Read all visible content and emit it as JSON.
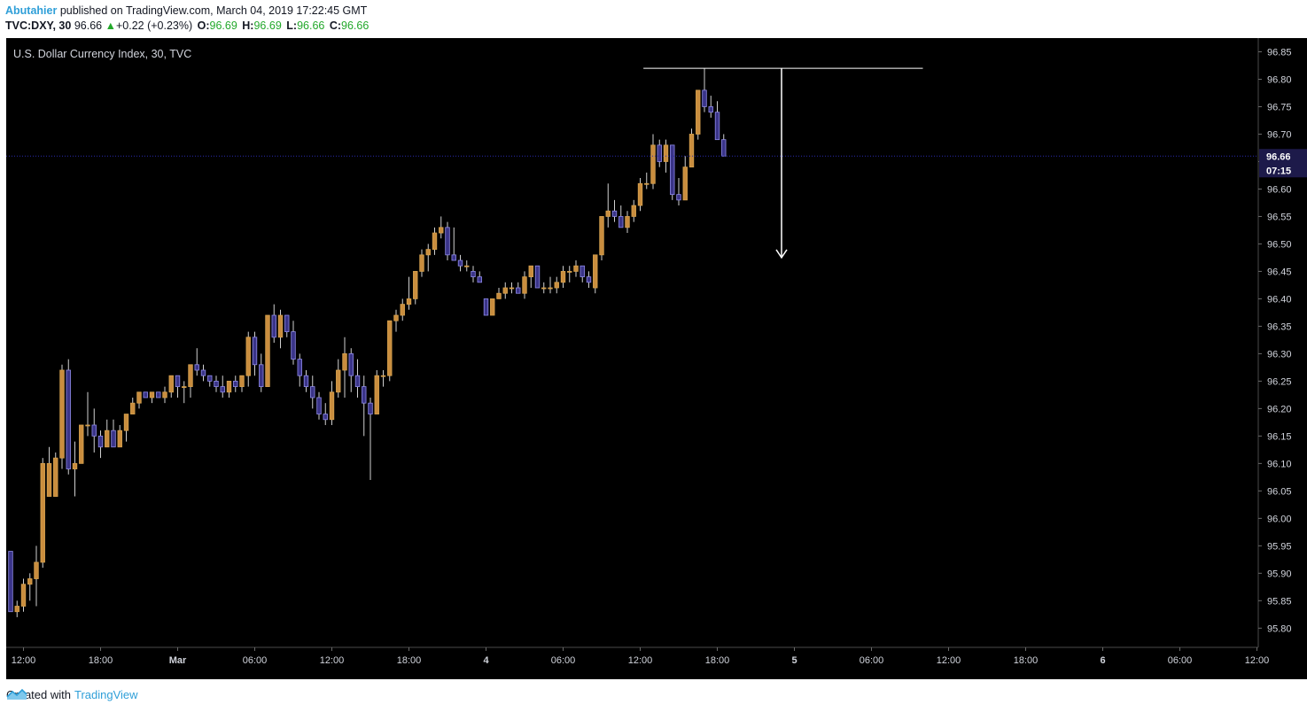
{
  "header": {
    "author": "Abutahier",
    "published_text": " published on TradingView.com, March 04, 2019 17:22:45 GMT",
    "symbol": "TVC:DXY, 30",
    "last": "96.66",
    "change": "+0.22 (+0.23%)",
    "o_label": "O:",
    "o_value": "96.69",
    "h_label": "H:",
    "h_value": "96.69",
    "l_label": "L:",
    "l_value": "96.66",
    "c_label": "C:",
    "c_value": "96.66"
  },
  "chart_data": {
    "type": "candlestick",
    "title": "U.S. Dollar Currency Index, 30, TVC",
    "ylim": [
      95.765,
      96.875
    ],
    "y_ticks": [
      95.8,
      95.85,
      95.9,
      95.95,
      96.0,
      96.05,
      96.1,
      96.15,
      96.2,
      96.25,
      96.3,
      96.35,
      96.4,
      96.45,
      96.5,
      96.55,
      96.6,
      96.65,
      96.7,
      96.75,
      96.8,
      96.85
    ],
    "x_ticks": [
      {
        "label": "12:00",
        "bar": 2
      },
      {
        "label": "18:00",
        "bar": 14
      },
      {
        "label": "Mar",
        "bar": 26
      },
      {
        "label": "06:00",
        "bar": 38
      },
      {
        "label": "12:00",
        "bar": 50
      },
      {
        "label": "18:00",
        "bar": 62
      },
      {
        "label": "4",
        "bar": 74
      },
      {
        "label": "06:00",
        "bar": 86
      },
      {
        "label": "12:00",
        "bar": 98
      },
      {
        "label": "18:00",
        "bar": 110
      },
      {
        "label": "5",
        "bar": 122
      },
      {
        "label": "06:00",
        "bar": 134
      },
      {
        "label": "12:00",
        "bar": 146
      },
      {
        "label": "18:00",
        "bar": 158
      },
      {
        "label": "6",
        "bar": 170
      },
      {
        "label": "06:00",
        "bar": 182
      },
      {
        "label": "12:00",
        "bar": 194
      }
    ],
    "last_price_label": "96.66",
    "countdown_label": "07:15",
    "last_price": 96.66,
    "ohlc": [
      [
        95.94,
        95.94,
        95.83,
        95.83
      ],
      [
        95.83,
        95.85,
        95.82,
        95.84
      ],
      [
        95.84,
        95.89,
        95.83,
        95.88
      ],
      [
        95.88,
        95.9,
        95.85,
        95.89
      ],
      [
        95.89,
        95.95,
        95.84,
        95.92
      ],
      [
        95.92,
        96.11,
        95.91,
        96.1
      ],
      [
        96.04,
        96.13,
        96.04,
        96.1
      ],
      [
        96.04,
        96.12,
        96.04,
        96.11
      ],
      [
        96.11,
        96.28,
        96.09,
        96.27
      ],
      [
        96.27,
        96.29,
        96.08,
        96.09
      ],
      [
        96.09,
        96.14,
        96.04,
        96.1
      ],
      [
        96.1,
        96.17,
        96.1,
        96.17
      ],
      [
        96.17,
        96.23,
        96.15,
        96.17
      ],
      [
        96.17,
        96.2,
        96.12,
        96.15
      ],
      [
        96.15,
        96.16,
        96.11,
        96.13
      ],
      [
        96.13,
        96.18,
        96.13,
        96.16
      ],
      [
        96.16,
        96.18,
        96.13,
        96.13
      ],
      [
        96.13,
        96.17,
        96.13,
        96.16
      ],
      [
        96.16,
        96.19,
        96.14,
        96.19
      ],
      [
        96.19,
        96.22,
        96.19,
        96.21
      ],
      [
        96.21,
        96.23,
        96.2,
        96.23
      ],
      [
        96.23,
        96.23,
        96.22,
        96.22
      ],
      [
        96.22,
        96.23,
        96.21,
        96.23
      ],
      [
        96.23,
        96.23,
        96.22,
        96.22
      ],
      [
        96.22,
        96.24,
        96.21,
        96.23
      ],
      [
        96.23,
        96.26,
        96.22,
        96.26
      ],
      [
        96.26,
        96.26,
        96.22,
        96.24
      ],
      [
        96.24,
        96.25,
        96.21,
        96.24
      ],
      [
        96.24,
        96.28,
        96.22,
        96.28
      ],
      [
        96.28,
        96.31,
        96.26,
        96.27
      ],
      [
        96.27,
        96.28,
        96.25,
        96.26
      ],
      [
        96.26,
        96.26,
        96.24,
        96.25
      ],
      [
        96.25,
        96.26,
        96.23,
        96.24
      ],
      [
        96.24,
        96.26,
        96.22,
        96.23
      ],
      [
        96.23,
        96.25,
        96.22,
        96.25
      ],
      [
        96.25,
        96.26,
        96.23,
        96.24
      ],
      [
        96.24,
        96.26,
        96.23,
        96.26
      ],
      [
        96.26,
        96.34,
        96.24,
        96.33
      ],
      [
        96.33,
        96.34,
        96.26,
        96.28
      ],
      [
        96.28,
        96.3,
        96.23,
        96.24
      ],
      [
        96.24,
        96.37,
        96.24,
        96.37
      ],
      [
        96.37,
        96.39,
        96.32,
        96.33
      ],
      [
        96.33,
        96.38,
        96.31,
        96.37
      ],
      [
        96.37,
        96.37,
        96.33,
        96.34
      ],
      [
        96.34,
        96.36,
        96.28,
        96.29
      ],
      [
        96.29,
        96.3,
        96.24,
        96.26
      ],
      [
        96.26,
        96.27,
        96.23,
        96.24
      ],
      [
        96.24,
        96.26,
        96.2,
        96.22
      ],
      [
        96.22,
        96.23,
        96.18,
        96.19
      ],
      [
        96.19,
        96.21,
        96.17,
        96.18
      ],
      [
        96.18,
        96.25,
        96.17,
        96.23
      ],
      [
        96.23,
        96.29,
        96.22,
        96.27
      ],
      [
        96.27,
        96.33,
        96.22,
        96.3
      ],
      [
        96.3,
        96.31,
        96.23,
        96.26
      ],
      [
        96.26,
        96.29,
        96.22,
        96.24
      ],
      [
        96.24,
        96.26,
        96.15,
        96.21
      ],
      [
        96.21,
        96.22,
        96.07,
        96.19
      ],
      [
        96.19,
        96.27,
        96.19,
        96.26
      ],
      [
        96.26,
        96.27,
        96.24,
        96.26
      ],
      [
        96.26,
        96.36,
        96.25,
        96.36
      ],
      [
        96.36,
        96.38,
        96.34,
        96.37
      ],
      [
        96.37,
        96.4,
        96.36,
        96.39
      ],
      [
        96.39,
        96.44,
        96.38,
        96.4
      ],
      [
        96.4,
        96.45,
        96.39,
        96.45
      ],
      [
        96.45,
        96.49,
        96.44,
        96.48
      ],
      [
        96.48,
        96.5,
        96.45,
        96.49
      ],
      [
        96.49,
        96.53,
        96.48,
        96.52
      ],
      [
        96.52,
        96.55,
        96.51,
        96.53
      ],
      [
        96.53,
        96.54,
        96.47,
        96.48
      ],
      [
        96.48,
        96.53,
        96.47,
        96.47
      ],
      [
        96.47,
        96.48,
        96.45,
        96.46
      ],
      [
        96.46,
        96.47,
        96.45,
        96.46
      ],
      [
        96.45,
        96.46,
        96.43,
        96.44
      ],
      [
        96.44,
        96.45,
        96.43,
        96.43
      ],
      [
        96.4,
        96.4,
        96.37,
        96.37
      ],
      [
        96.37,
        96.4,
        96.37,
        96.4
      ],
      [
        96.4,
        96.42,
        96.4,
        96.41
      ],
      [
        96.41,
        96.43,
        96.4,
        96.42
      ],
      [
        96.42,
        96.43,
        96.41,
        96.42
      ],
      [
        96.42,
        96.43,
        96.41,
        96.41
      ],
      [
        96.41,
        96.45,
        96.4,
        96.44
      ],
      [
        96.44,
        96.46,
        96.42,
        96.46
      ],
      [
        96.46,
        96.46,
        96.42,
        96.42
      ],
      [
        96.42,
        96.43,
        96.41,
        96.42
      ],
      [
        96.42,
        96.44,
        96.41,
        96.42
      ],
      [
        96.42,
        96.44,
        96.41,
        96.43
      ],
      [
        96.43,
        96.46,
        96.42,
        96.45
      ],
      [
        96.45,
        96.46,
        96.43,
        96.45
      ],
      [
        96.45,
        96.47,
        96.44,
        96.46
      ],
      [
        96.46,
        96.46,
        96.43,
        96.44
      ],
      [
        96.44,
        96.45,
        96.42,
        96.43
      ],
      [
        96.42,
        96.48,
        96.41,
        96.48
      ],
      [
        96.48,
        96.55,
        96.47,
        96.55
      ],
      [
        96.55,
        96.61,
        96.53,
        96.56
      ],
      [
        96.56,
        96.58,
        96.54,
        96.55
      ],
      [
        96.55,
        96.57,
        96.53,
        96.53
      ],
      [
        96.53,
        96.56,
        96.52,
        96.55
      ],
      [
        96.55,
        96.58,
        96.54,
        96.57
      ],
      [
        96.57,
        96.62,
        96.56,
        96.61
      ],
      [
        96.61,
        96.63,
        96.6,
        96.61
      ],
      [
        96.61,
        96.7,
        96.6,
        96.68
      ],
      [
        96.68,
        96.69,
        96.64,
        96.65
      ],
      [
        96.65,
        96.69,
        96.63,
        96.68
      ],
      [
        96.68,
        96.68,
        96.58,
        96.59
      ],
      [
        96.59,
        96.62,
        96.57,
        96.58
      ],
      [
        96.58,
        96.66,
        96.58,
        96.64
      ],
      [
        96.64,
        96.71,
        96.64,
        96.7
      ],
      [
        96.7,
        96.78,
        96.69,
        96.78
      ],
      [
        96.78,
        96.82,
        96.74,
        96.75
      ],
      [
        96.75,
        96.77,
        96.73,
        96.74
      ],
      [
        96.74,
        96.76,
        96.69,
        96.69
      ],
      [
        96.69,
        96.7,
        96.66,
        96.66
      ]
    ],
    "annotations": [
      {
        "type": "hline",
        "price": 96.82,
        "from_bar": 98.5,
        "to_bar": 142
      },
      {
        "type": "arrow_down",
        "bar": 120,
        "from_price": 96.82,
        "to_price": 96.475
      }
    ]
  },
  "footer": {
    "created_with": "Created with",
    "brand": "TradingView"
  },
  "colors": {
    "up_fill": "#c98d3e",
    "down_fill": "#3a3488",
    "up_stroke": "#d6a24f",
    "down_stroke": "#8f8be8",
    "wick": "#d0d0d0",
    "axis_text": "#d1d4dc",
    "last_price_bg": "#1d1a4a",
    "last_price_line": "#2a2ab0",
    "annotation": "#ffffff"
  }
}
